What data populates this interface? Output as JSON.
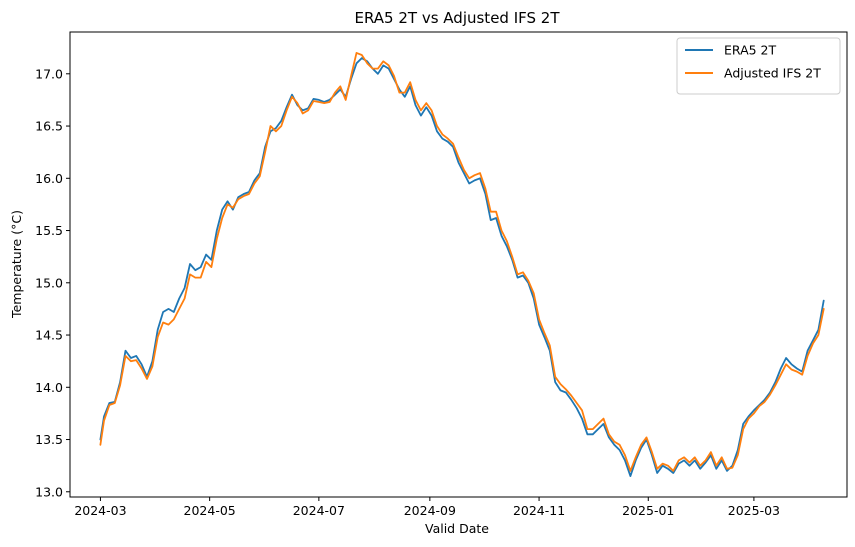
{
  "chart_data": {
    "type": "line",
    "title": "ERA5 2T vs Adjusted IFS 2T",
    "xlabel": "Valid Date",
    "ylabel": "Temperature (°C)",
    "xlim": [
      "2024-02-13",
      "2025-04-22"
    ],
    "ylim": [
      12.95,
      17.4
    ],
    "x_ticks": [
      "2024-03-01",
      "2024-05-01",
      "2024-07-01",
      "2024-09-01",
      "2024-11-01",
      "2025-01-01",
      "2025-03-01"
    ],
    "x_tick_labels": [
      "2024-03",
      "2024-05",
      "2024-07",
      "2024-09",
      "2024-11",
      "2025-01",
      "2025-03"
    ],
    "y_ticks": [
      13.0,
      13.5,
      14.0,
      14.5,
      15.0,
      15.5,
      16.0,
      16.5,
      17.0
    ],
    "y_tick_labels": [
      "13.0",
      "13.5",
      "14.0",
      "14.5",
      "15.0",
      "15.5",
      "16.0",
      "16.5",
      "17.0"
    ],
    "grid": false,
    "legend": {
      "position": "top-right"
    },
    "series": [
      {
        "name": "ERA5 2T",
        "color": "#1f77b4",
        "points": [
          [
            "2024-03-01",
            13.5
          ],
          [
            "2024-03-03",
            13.72
          ],
          [
            "2024-03-06",
            13.85
          ],
          [
            "2024-03-09",
            13.86
          ],
          [
            "2024-03-12",
            14.05
          ],
          [
            "2024-03-15",
            14.35
          ],
          [
            "2024-03-18",
            14.28
          ],
          [
            "2024-03-21",
            14.3
          ],
          [
            "2024-03-24",
            14.22
          ],
          [
            "2024-03-27",
            14.1
          ],
          [
            "2024-03-30",
            14.25
          ],
          [
            "2024-04-02",
            14.55
          ],
          [
            "2024-04-05",
            14.72
          ],
          [
            "2024-04-08",
            14.75
          ],
          [
            "2024-04-11",
            14.72
          ],
          [
            "2024-04-14",
            14.85
          ],
          [
            "2024-04-17",
            14.95
          ],
          [
            "2024-04-20",
            15.18
          ],
          [
            "2024-04-23",
            15.12
          ],
          [
            "2024-04-26",
            15.15
          ],
          [
            "2024-04-29",
            15.27
          ],
          [
            "2024-05-02",
            15.22
          ],
          [
            "2024-05-05",
            15.5
          ],
          [
            "2024-05-08",
            15.7
          ],
          [
            "2024-05-11",
            15.78
          ],
          [
            "2024-05-14",
            15.7
          ],
          [
            "2024-05-17",
            15.82
          ],
          [
            "2024-05-20",
            15.85
          ],
          [
            "2024-05-23",
            15.87
          ],
          [
            "2024-05-26",
            15.98
          ],
          [
            "2024-05-29",
            16.05
          ],
          [
            "2024-06-01",
            16.3
          ],
          [
            "2024-06-04",
            16.45
          ],
          [
            "2024-06-07",
            16.48
          ],
          [
            "2024-06-10",
            16.55
          ],
          [
            "2024-06-13",
            16.68
          ],
          [
            "2024-06-16",
            16.8
          ],
          [
            "2024-06-19",
            16.7
          ],
          [
            "2024-06-22",
            16.65
          ],
          [
            "2024-06-25",
            16.67
          ],
          [
            "2024-06-28",
            16.76
          ],
          [
            "2024-07-01",
            16.75
          ],
          [
            "2024-07-04",
            16.73
          ],
          [
            "2024-07-07",
            16.75
          ],
          [
            "2024-07-10",
            16.8
          ],
          [
            "2024-07-13",
            16.85
          ],
          [
            "2024-07-16",
            16.78
          ],
          [
            "2024-07-19",
            16.95
          ],
          [
            "2024-07-22",
            17.1
          ],
          [
            "2024-07-25",
            17.15
          ],
          [
            "2024-07-28",
            17.12
          ],
          [
            "2024-07-31",
            17.05
          ],
          [
            "2024-08-03",
            17.0
          ],
          [
            "2024-08-06",
            17.08
          ],
          [
            "2024-08-09",
            17.05
          ],
          [
            "2024-08-12",
            16.95
          ],
          [
            "2024-08-15",
            16.85
          ],
          [
            "2024-08-18",
            16.78
          ],
          [
            "2024-08-21",
            16.88
          ],
          [
            "2024-08-24",
            16.7
          ],
          [
            "2024-08-27",
            16.6
          ],
          [
            "2024-08-30",
            16.68
          ],
          [
            "2024-09-02",
            16.6
          ],
          [
            "2024-09-05",
            16.45
          ],
          [
            "2024-09-08",
            16.38
          ],
          [
            "2024-09-11",
            16.35
          ],
          [
            "2024-09-14",
            16.3
          ],
          [
            "2024-09-17",
            16.15
          ],
          [
            "2024-09-20",
            16.05
          ],
          [
            "2024-09-23",
            15.95
          ],
          [
            "2024-09-26",
            15.98
          ],
          [
            "2024-09-29",
            16.0
          ],
          [
            "2024-10-02",
            15.85
          ],
          [
            "2024-10-05",
            15.6
          ],
          [
            "2024-10-08",
            15.62
          ],
          [
            "2024-10-11",
            15.45
          ],
          [
            "2024-10-14",
            15.35
          ],
          [
            "2024-10-17",
            15.22
          ],
          [
            "2024-10-20",
            15.05
          ],
          [
            "2024-10-23",
            15.07
          ],
          [
            "2024-10-26",
            15.0
          ],
          [
            "2024-10-29",
            14.85
          ],
          [
            "2024-11-01",
            14.6
          ],
          [
            "2024-11-04",
            14.48
          ],
          [
            "2024-11-07",
            14.35
          ],
          [
            "2024-11-10",
            14.05
          ],
          [
            "2024-11-13",
            13.97
          ],
          [
            "2024-11-16",
            13.95
          ],
          [
            "2024-11-19",
            13.88
          ],
          [
            "2024-11-22",
            13.8
          ],
          [
            "2024-11-25",
            13.7
          ],
          [
            "2024-11-28",
            13.55
          ],
          [
            "2024-12-01",
            13.55
          ],
          [
            "2024-12-04",
            13.6
          ],
          [
            "2024-12-07",
            13.65
          ],
          [
            "2024-12-10",
            13.52
          ],
          [
            "2024-12-13",
            13.45
          ],
          [
            "2024-12-16",
            13.4
          ],
          [
            "2024-12-19",
            13.3
          ],
          [
            "2024-12-22",
            13.15
          ],
          [
            "2024-12-25",
            13.3
          ],
          [
            "2024-12-28",
            13.42
          ],
          [
            "2024-12-31",
            13.5
          ],
          [
            "2025-01-03",
            13.35
          ],
          [
            "2025-01-06",
            13.18
          ],
          [
            "2025-01-09",
            13.25
          ],
          [
            "2025-01-12",
            13.22
          ],
          [
            "2025-01-15",
            13.18
          ],
          [
            "2025-01-18",
            13.27
          ],
          [
            "2025-01-21",
            13.3
          ],
          [
            "2025-01-24",
            13.25
          ],
          [
            "2025-01-27",
            13.3
          ],
          [
            "2025-01-30",
            13.22
          ],
          [
            "2025-02-02",
            13.28
          ],
          [
            "2025-02-05",
            13.35
          ],
          [
            "2025-02-08",
            13.22
          ],
          [
            "2025-02-11",
            13.3
          ],
          [
            "2025-02-14",
            13.2
          ],
          [
            "2025-02-17",
            13.25
          ],
          [
            "2025-02-20",
            13.4
          ],
          [
            "2025-02-23",
            13.65
          ],
          [
            "2025-02-26",
            13.72
          ],
          [
            "2025-03-01",
            13.78
          ],
          [
            "2025-03-04",
            13.83
          ],
          [
            "2025-03-07",
            13.88
          ],
          [
            "2025-03-10",
            13.95
          ],
          [
            "2025-03-13",
            14.05
          ],
          [
            "2025-03-16",
            14.18
          ],
          [
            "2025-03-19",
            14.28
          ],
          [
            "2025-03-22",
            14.22
          ],
          [
            "2025-03-25",
            14.18
          ],
          [
            "2025-03-28",
            14.15
          ],
          [
            "2025-03-31",
            14.35
          ],
          [
            "2025-04-03",
            14.45
          ],
          [
            "2025-04-06",
            14.55
          ],
          [
            "2025-04-09",
            14.83
          ]
        ]
      },
      {
        "name": "Adjusted IFS 2T",
        "color": "#ff7f0e",
        "points": [
          [
            "2024-03-01",
            13.45
          ],
          [
            "2024-03-03",
            13.68
          ],
          [
            "2024-03-06",
            13.83
          ],
          [
            "2024-03-09",
            13.85
          ],
          [
            "2024-03-12",
            14.02
          ],
          [
            "2024-03-15",
            14.3
          ],
          [
            "2024-03-18",
            14.25
          ],
          [
            "2024-03-21",
            14.26
          ],
          [
            "2024-03-24",
            14.18
          ],
          [
            "2024-03-27",
            14.08
          ],
          [
            "2024-03-30",
            14.2
          ],
          [
            "2024-04-02",
            14.48
          ],
          [
            "2024-04-05",
            14.62
          ],
          [
            "2024-04-08",
            14.6
          ],
          [
            "2024-04-11",
            14.65
          ],
          [
            "2024-04-14",
            14.75
          ],
          [
            "2024-04-17",
            14.85
          ],
          [
            "2024-04-20",
            15.08
          ],
          [
            "2024-04-23",
            15.05
          ],
          [
            "2024-04-26",
            15.05
          ],
          [
            "2024-04-29",
            15.2
          ],
          [
            "2024-05-02",
            15.15
          ],
          [
            "2024-05-05",
            15.42
          ],
          [
            "2024-05-08",
            15.62
          ],
          [
            "2024-05-11",
            15.75
          ],
          [
            "2024-05-14",
            15.72
          ],
          [
            "2024-05-17",
            15.8
          ],
          [
            "2024-05-20",
            15.83
          ],
          [
            "2024-05-23",
            15.85
          ],
          [
            "2024-05-26",
            15.95
          ],
          [
            "2024-05-29",
            16.02
          ],
          [
            "2024-06-01",
            16.25
          ],
          [
            "2024-06-04",
            16.5
          ],
          [
            "2024-06-07",
            16.45
          ],
          [
            "2024-06-10",
            16.5
          ],
          [
            "2024-06-13",
            16.65
          ],
          [
            "2024-06-16",
            16.78
          ],
          [
            "2024-06-19",
            16.72
          ],
          [
            "2024-06-22",
            16.62
          ],
          [
            "2024-06-25",
            16.65
          ],
          [
            "2024-06-28",
            16.74
          ],
          [
            "2024-07-01",
            16.73
          ],
          [
            "2024-07-04",
            16.72
          ],
          [
            "2024-07-07",
            16.73
          ],
          [
            "2024-07-10",
            16.82
          ],
          [
            "2024-07-13",
            16.88
          ],
          [
            "2024-07-16",
            16.75
          ],
          [
            "2024-07-19",
            16.98
          ],
          [
            "2024-07-22",
            17.2
          ],
          [
            "2024-07-25",
            17.18
          ],
          [
            "2024-07-28",
            17.1
          ],
          [
            "2024-07-31",
            17.05
          ],
          [
            "2024-08-03",
            17.05
          ],
          [
            "2024-08-06",
            17.12
          ],
          [
            "2024-08-09",
            17.08
          ],
          [
            "2024-08-12",
            16.98
          ],
          [
            "2024-08-15",
            16.82
          ],
          [
            "2024-08-18",
            16.82
          ],
          [
            "2024-08-21",
            16.92
          ],
          [
            "2024-08-24",
            16.75
          ],
          [
            "2024-08-27",
            16.65
          ],
          [
            "2024-08-30",
            16.72
          ],
          [
            "2024-09-02",
            16.65
          ],
          [
            "2024-09-05",
            16.5
          ],
          [
            "2024-09-08",
            16.42
          ],
          [
            "2024-09-11",
            16.38
          ],
          [
            "2024-09-14",
            16.33
          ],
          [
            "2024-09-17",
            16.2
          ],
          [
            "2024-09-20",
            16.08
          ],
          [
            "2024-09-23",
            16.0
          ],
          [
            "2024-09-26",
            16.03
          ],
          [
            "2024-09-29",
            16.05
          ],
          [
            "2024-10-02",
            15.9
          ],
          [
            "2024-10-05",
            15.68
          ],
          [
            "2024-10-08",
            15.68
          ],
          [
            "2024-10-11",
            15.5
          ],
          [
            "2024-10-14",
            15.4
          ],
          [
            "2024-10-17",
            15.25
          ],
          [
            "2024-10-20",
            15.08
          ],
          [
            "2024-10-23",
            15.1
          ],
          [
            "2024-10-26",
            15.02
          ],
          [
            "2024-10-29",
            14.9
          ],
          [
            "2024-11-01",
            14.65
          ],
          [
            "2024-11-04",
            14.52
          ],
          [
            "2024-11-07",
            14.4
          ],
          [
            "2024-11-10",
            14.1
          ],
          [
            "2024-11-13",
            14.03
          ],
          [
            "2024-11-16",
            13.98
          ],
          [
            "2024-11-19",
            13.92
          ],
          [
            "2024-11-22",
            13.85
          ],
          [
            "2024-11-25",
            13.78
          ],
          [
            "2024-11-28",
            13.6
          ],
          [
            "2024-12-01",
            13.6
          ],
          [
            "2024-12-04",
            13.65
          ],
          [
            "2024-12-07",
            13.7
          ],
          [
            "2024-12-10",
            13.55
          ],
          [
            "2024-12-13",
            13.48
          ],
          [
            "2024-12-16",
            13.45
          ],
          [
            "2024-12-19",
            13.35
          ],
          [
            "2024-12-22",
            13.2
          ],
          [
            "2024-12-25",
            13.33
          ],
          [
            "2024-12-28",
            13.45
          ],
          [
            "2024-12-31",
            13.52
          ],
          [
            "2025-01-03",
            13.38
          ],
          [
            "2025-01-06",
            13.22
          ],
          [
            "2025-01-09",
            13.27
          ],
          [
            "2025-01-12",
            13.25
          ],
          [
            "2025-01-15",
            13.2
          ],
          [
            "2025-01-18",
            13.3
          ],
          [
            "2025-01-21",
            13.33
          ],
          [
            "2025-01-24",
            13.28
          ],
          [
            "2025-01-27",
            13.33
          ],
          [
            "2025-01-30",
            13.25
          ],
          [
            "2025-02-02",
            13.3
          ],
          [
            "2025-02-05",
            13.38
          ],
          [
            "2025-02-08",
            13.25
          ],
          [
            "2025-02-11",
            13.33
          ],
          [
            "2025-02-14",
            13.22
          ],
          [
            "2025-02-17",
            13.23
          ],
          [
            "2025-02-20",
            13.35
          ],
          [
            "2025-02-23",
            13.6
          ],
          [
            "2025-02-26",
            13.7
          ],
          [
            "2025-03-01",
            13.75
          ],
          [
            "2025-03-04",
            13.82
          ],
          [
            "2025-03-07",
            13.86
          ],
          [
            "2025-03-10",
            13.93
          ],
          [
            "2025-03-13",
            14.02
          ],
          [
            "2025-03-16",
            14.12
          ],
          [
            "2025-03-19",
            14.22
          ],
          [
            "2025-03-22",
            14.17
          ],
          [
            "2025-03-25",
            14.15
          ],
          [
            "2025-03-28",
            14.12
          ],
          [
            "2025-03-31",
            14.3
          ],
          [
            "2025-04-03",
            14.42
          ],
          [
            "2025-04-06",
            14.5
          ],
          [
            "2025-04-09",
            14.75
          ]
        ]
      }
    ]
  }
}
